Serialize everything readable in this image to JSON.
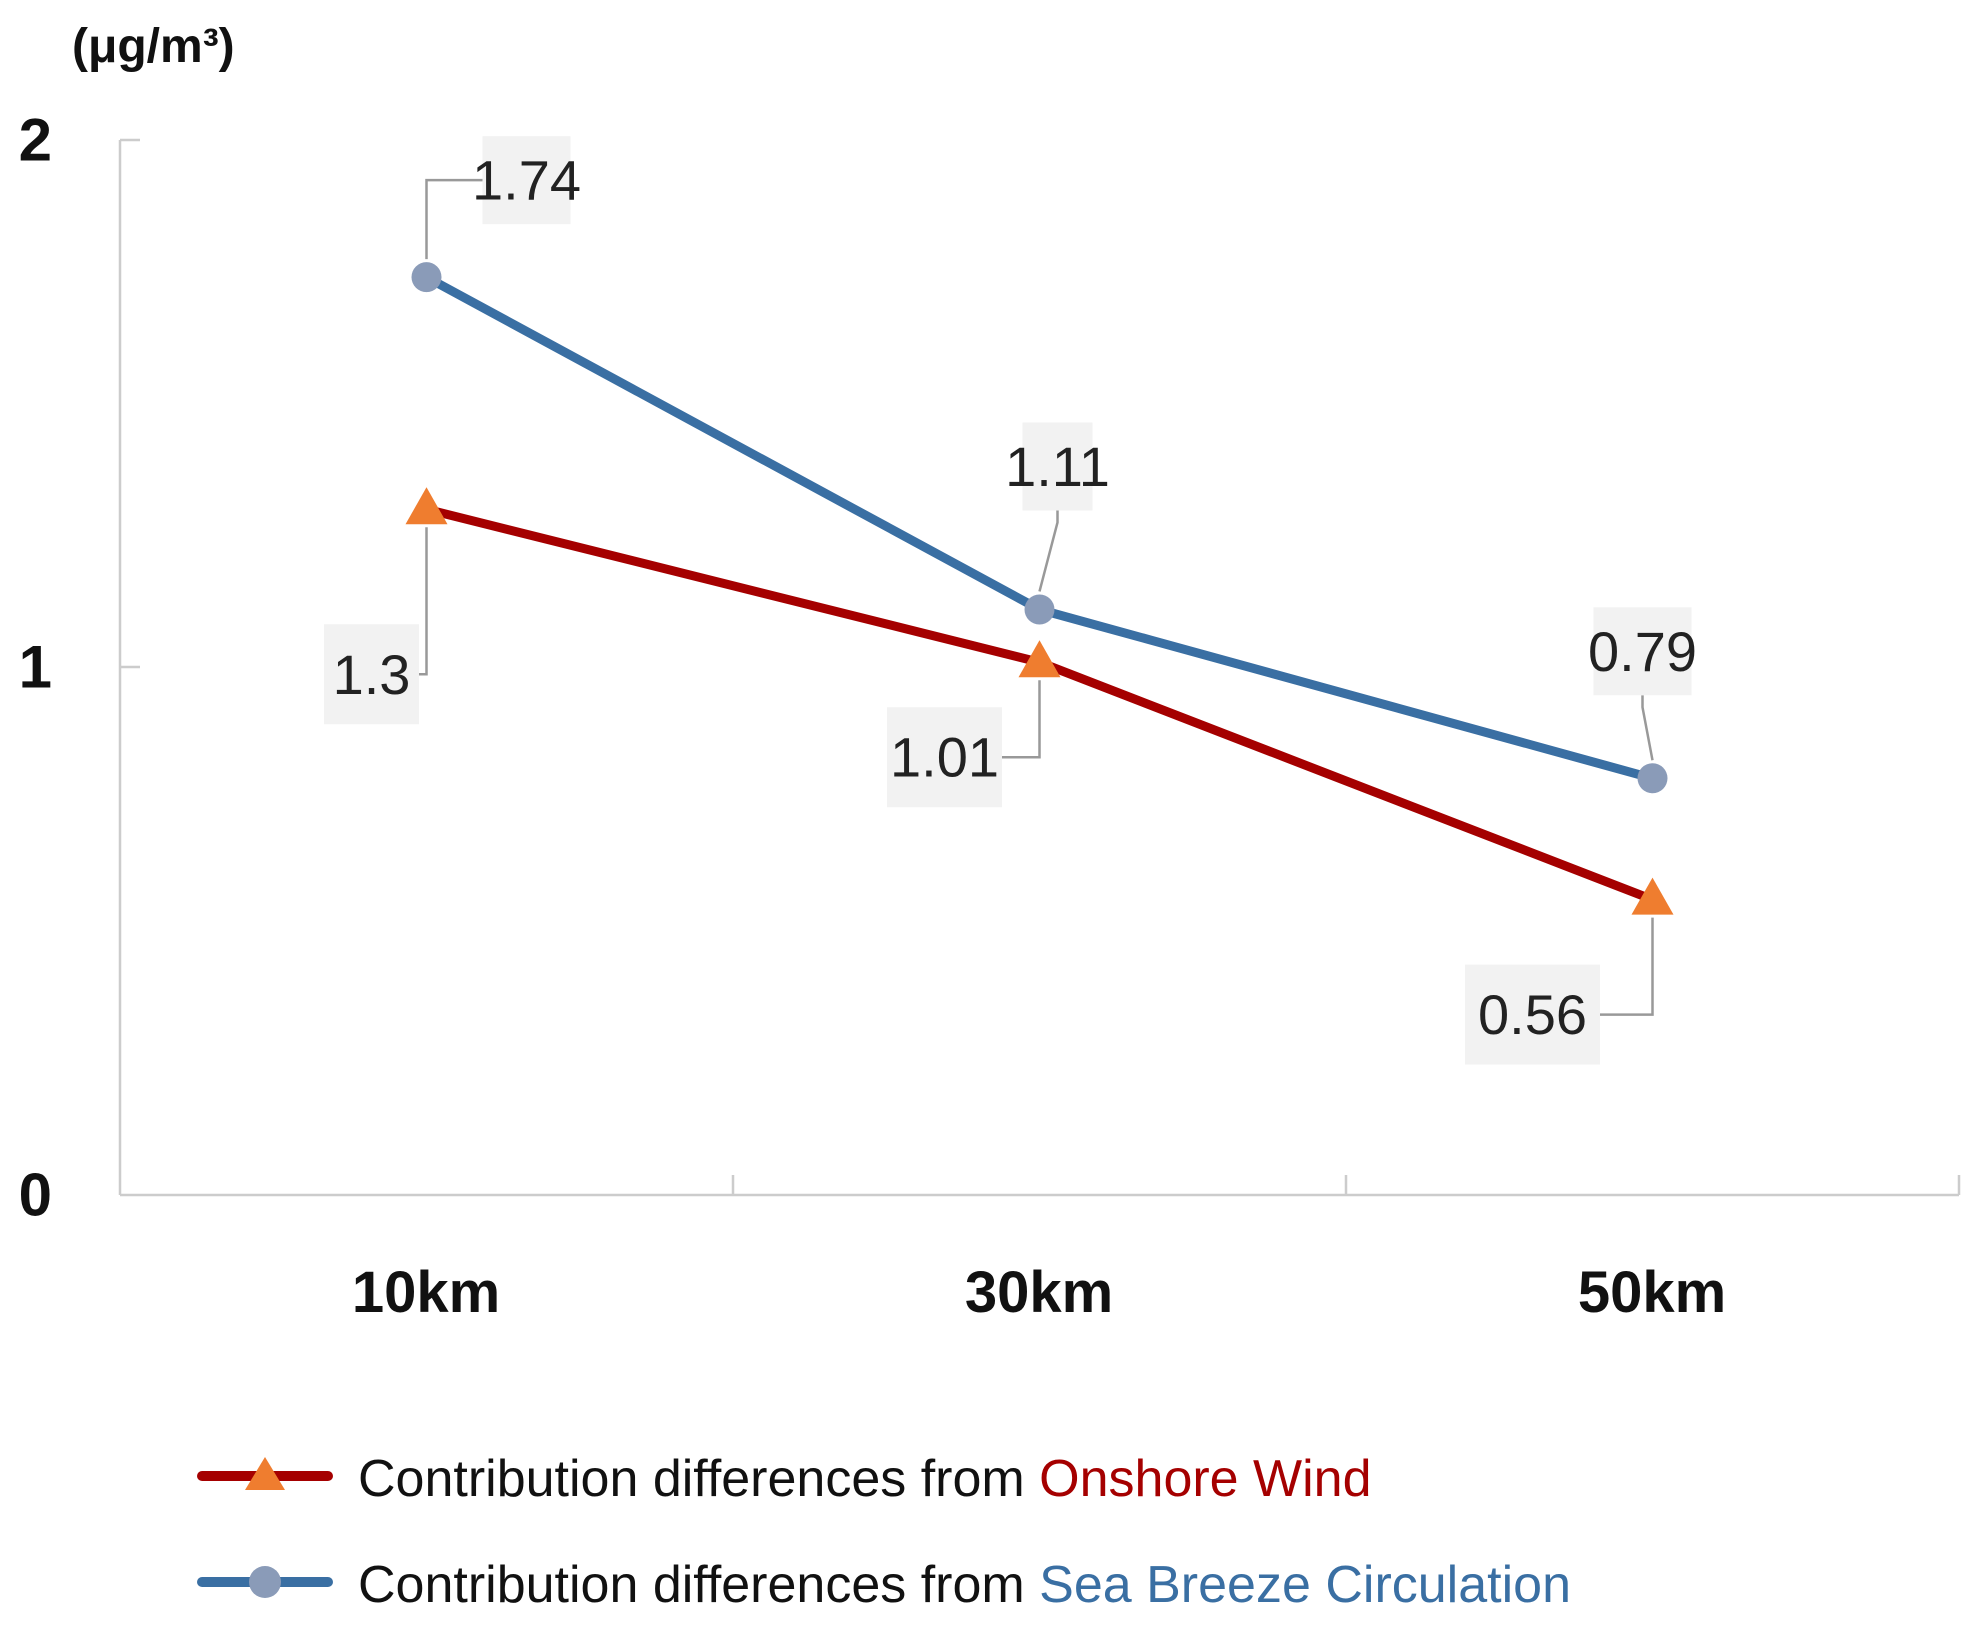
{
  "chart_data": {
    "type": "line",
    "unit_label": "(μg/m³)",
    "categories": [
      "10km",
      "30km",
      "50km"
    ],
    "y_ticks": [
      "0",
      "1",
      "2"
    ],
    "ylim": [
      0,
      2
    ],
    "grid": false,
    "legend_position": "bottom-left",
    "legend_prefix": "Contribution differences from ",
    "series": [
      {
        "name": "Onshore Wind",
        "values": [
          1.3,
          1.01,
          0.56
        ],
        "labels": [
          "1.3",
          "1.01",
          "0.56"
        ],
        "line_color": "#a50000",
        "marker": "triangle",
        "marker_color": "#ef7d2f",
        "name_color": "#a50000"
      },
      {
        "name": "Sea Breeze Circulation",
        "values": [
          1.74,
          1.11,
          0.79
        ],
        "labels": [
          "1.74",
          "1.11",
          "0.79"
        ],
        "line_color": "#3a6fa3",
        "marker": "circle",
        "marker_color": "#8a9bb8",
        "name_color": "#3a6fa3"
      }
    ]
  }
}
